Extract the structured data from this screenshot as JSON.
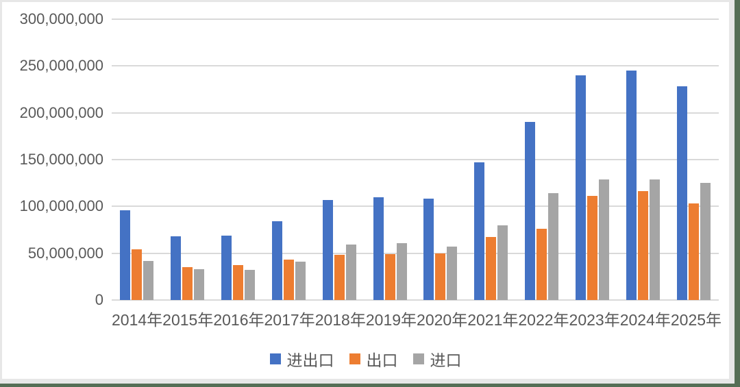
{
  "chart_data": {
    "type": "bar",
    "title": "",
    "xlabel": "",
    "ylabel": "",
    "categories": [
      "2014年",
      "2015年",
      "2016年",
      "2017年",
      "2018年",
      "2019年",
      "2020年",
      "2021年",
      "2022年",
      "2023年",
      "2024年",
      "2025年"
    ],
    "series": [
      {
        "name": "进出口",
        "color": "#4472c4",
        "values": [
          96000000,
          68000000,
          69000000,
          84000000,
          107000000,
          110000000,
          108000000,
          147000000,
          190000000,
          240000000,
          245000000,
          228000000
        ]
      },
      {
        "name": "出口",
        "color": "#ed7d31",
        "values": [
          54000000,
          35000000,
          37000000,
          43000000,
          48000000,
          49000000,
          50000000,
          67000000,
          76000000,
          111000000,
          116000000,
          103000000
        ]
      },
      {
        "name": "进口",
        "color": "#a5a5a5",
        "values": [
          42000000,
          33000000,
          32000000,
          41000000,
          59000000,
          61000000,
          57000000,
          80000000,
          114000000,
          129000000,
          129000000,
          125000000
        ]
      }
    ],
    "ylim": [
      0,
      300000000
    ],
    "y_ticks": [
      "300,000,000",
      "250,000,000",
      "200,000,000",
      "150,000,000",
      "100,000,000",
      "50,000,000",
      "0"
    ],
    "grid": "horizontal",
    "legend_position": "bottom"
  },
  "style": {
    "gridline_color": "#d9d9d9",
    "tick_text_color": "#595959",
    "card_border_color": "#e7e7e7",
    "page_edge_color": "#556e55"
  }
}
